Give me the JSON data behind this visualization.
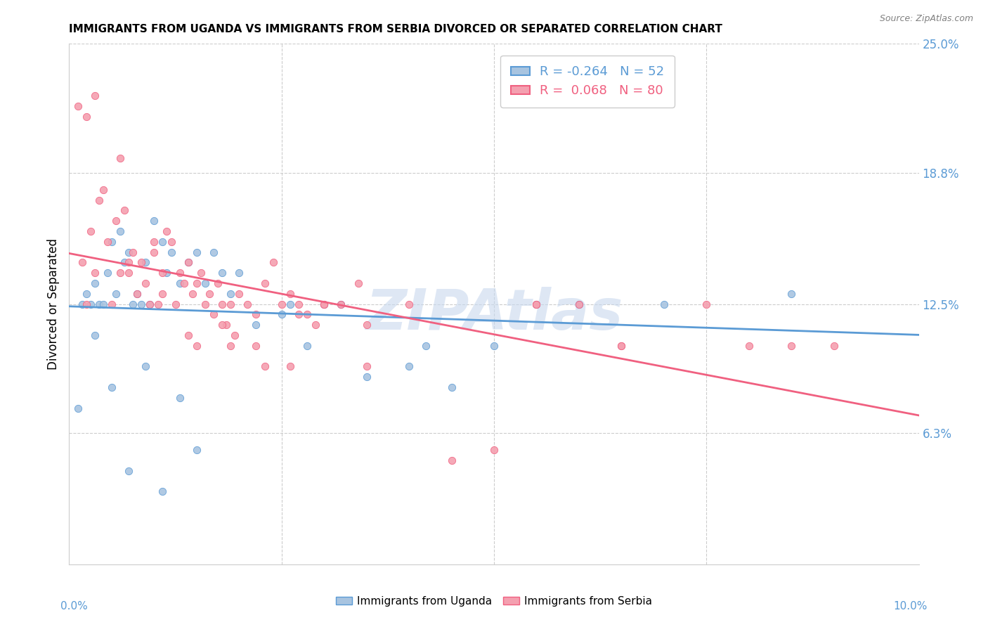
{
  "title": "IMMIGRANTS FROM UGANDA VS IMMIGRANTS FROM SERBIA DIVORCED OR SEPARATED CORRELATION CHART",
  "source": "Source: ZipAtlas.com",
  "ylabel": "Divorced or Separated",
  "right_yticks": [
    6.3,
    12.5,
    18.8,
    25.0
  ],
  "right_ytick_labels": [
    "6.3%",
    "12.5%",
    "18.8%",
    "25.0%"
  ],
  "xlim": [
    0.0,
    10.0
  ],
  "ylim": [
    0.0,
    25.0
  ],
  "legend_R_uganda": "-0.264",
  "legend_N_uganda": "52",
  "legend_R_serbia": "0.068",
  "legend_N_serbia": "80",
  "color_uganda": "#a8c4e0",
  "color_serbia": "#f4a0b0",
  "line_color_uganda": "#5b9bd5",
  "line_color_serbia": "#f06080",
  "watermark": "ZIPAtlas",
  "uganda_x": [
    0.15,
    0.2,
    0.25,
    0.3,
    0.35,
    0.4,
    0.45,
    0.5,
    0.55,
    0.6,
    0.65,
    0.7,
    0.75,
    0.8,
    0.85,
    0.9,
    0.95,
    1.0,
    1.1,
    1.15,
    1.2,
    1.3,
    1.4,
    1.5,
    1.6,
    1.7,
    1.8,
    1.9,
    2.0,
    2.2,
    2.5,
    2.6,
    2.8,
    3.0,
    3.2,
    3.5,
    4.0,
    4.2,
    4.5,
    5.0,
    5.5,
    6.0,
    7.0,
    8.5,
    0.1,
    0.3,
    0.5,
    0.7,
    0.9,
    1.1,
    1.3,
    1.5
  ],
  "uganda_y": [
    12.5,
    13.0,
    12.5,
    13.5,
    12.5,
    12.5,
    14.0,
    15.5,
    13.0,
    16.0,
    14.5,
    15.0,
    12.5,
    13.0,
    12.5,
    14.5,
    12.5,
    16.5,
    15.5,
    14.0,
    15.0,
    13.5,
    14.5,
    15.0,
    13.5,
    15.0,
    14.0,
    13.0,
    14.0,
    11.5,
    12.0,
    12.5,
    10.5,
    12.5,
    12.5,
    9.0,
    9.5,
    10.5,
    8.5,
    10.5,
    12.5,
    12.5,
    12.5,
    13.0,
    7.5,
    11.0,
    8.5,
    4.5,
    9.5,
    3.5,
    8.0,
    5.5
  ],
  "serbia_x": [
    0.1,
    0.15,
    0.2,
    0.25,
    0.3,
    0.35,
    0.4,
    0.45,
    0.5,
    0.55,
    0.6,
    0.65,
    0.7,
    0.75,
    0.8,
    0.85,
    0.9,
    0.95,
    1.0,
    1.05,
    1.1,
    1.15,
    1.2,
    1.25,
    1.3,
    1.35,
    1.4,
    1.45,
    1.5,
    1.55,
    1.6,
    1.65,
    1.7,
    1.75,
    1.8,
    1.85,
    1.9,
    1.95,
    2.0,
    2.1,
    2.2,
    2.3,
    2.4,
    2.5,
    2.6,
    2.7,
    2.8,
    2.9,
    3.0,
    3.2,
    3.4,
    3.5,
    4.5,
    5.0,
    5.5,
    6.0,
    6.5,
    8.0,
    0.2,
    0.6,
    1.0,
    1.4,
    1.8,
    2.2,
    2.6,
    3.0,
    0.3,
    0.7,
    1.1,
    1.5,
    1.9,
    2.3,
    2.7,
    3.5,
    4.0,
    5.5,
    6.5,
    7.5,
    8.5,
    9.0
  ],
  "serbia_y": [
    22.0,
    14.5,
    12.5,
    16.0,
    14.0,
    17.5,
    18.0,
    15.5,
    12.5,
    16.5,
    14.0,
    17.0,
    14.5,
    15.0,
    13.0,
    14.5,
    13.5,
    12.5,
    15.5,
    12.5,
    14.0,
    16.0,
    15.5,
    12.5,
    14.0,
    13.5,
    14.5,
    13.0,
    13.5,
    14.0,
    12.5,
    13.0,
    12.0,
    13.5,
    12.5,
    11.5,
    12.5,
    11.0,
    13.0,
    12.5,
    12.0,
    13.5,
    14.5,
    12.5,
    13.0,
    12.5,
    12.0,
    11.5,
    12.5,
    12.5,
    13.5,
    11.5,
    5.0,
    5.5,
    12.5,
    12.5,
    10.5,
    10.5,
    21.5,
    19.5,
    15.0,
    11.0,
    11.5,
    10.5,
    9.5,
    12.5,
    22.5,
    14.0,
    13.0,
    10.5,
    10.5,
    9.5,
    12.0,
    9.5,
    12.5,
    12.5,
    10.5,
    12.5,
    10.5,
    10.5
  ]
}
